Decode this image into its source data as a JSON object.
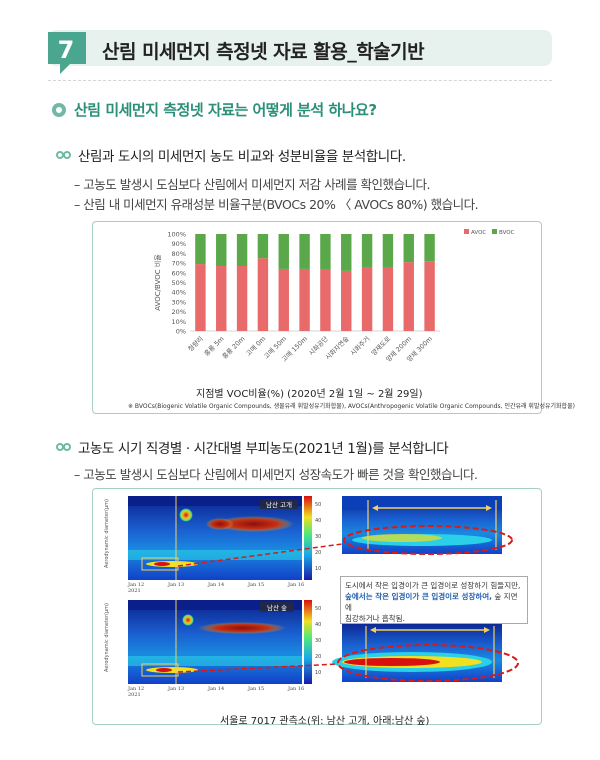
{
  "header": {
    "number": "7",
    "title": "산림 미세먼지 측정넷 자료 활용_학술기반"
  },
  "question": "산림 미세먼지 측정넷 자료는 어떻게 분석 하나요?",
  "section1": {
    "heading": "산림과 도시의 미세먼지 농도 비교와 성분비율을 분석합니다.",
    "bullets": [
      "– 고농도 발생시 도심보다 산림에서 미세먼지 저감 사례를 확인했습니다.",
      "– 산림 내 미세먼지 유래성분 비율구분(BVOCs 20% 〈 AVOCs 80%) 했습니다."
    ]
  },
  "chart_data": {
    "type": "bar",
    "stacked": true,
    "ylabel": "AVOC/BVOC 비율",
    "ylim": [
      0,
      100
    ],
    "yticks": [
      "0%",
      "10%",
      "20%",
      "30%",
      "40%",
      "50%",
      "60%",
      "70%",
      "80%",
      "90%",
      "100%"
    ],
    "categories": [
      "청량리",
      "홍릉 5m",
      "홍릉 20m",
      "고매 0m",
      "고매 50m",
      "고매 150m",
      "시화공단",
      "시화자연숲",
      "시화주거",
      "양재도로",
      "양재 200m",
      "양재 300m"
    ],
    "series": [
      {
        "name": "AVOC",
        "color": "#e86a6a",
        "values": [
          69,
          67,
          67,
          75,
          64,
          64,
          63,
          62,
          66,
          66,
          71,
          72
        ]
      },
      {
        "name": "BVOC",
        "color": "#5aa84a",
        "values": [
          31,
          33,
          33,
          25,
          36,
          36,
          37,
          38,
          34,
          34,
          29,
          28
        ]
      }
    ],
    "legend": "top-right",
    "caption": "지점별 VOC비율(%) (2020년 2월 1일 ~ 2월 29일)",
    "note": "※ BVOCs(Biogenic Volatile Organic Compounds, 생물유래 휘발성유기화합물), AVOCs(Anthropogenic Volatile Organic Compounds, 인간유래 휘발성유기화합물)"
  },
  "section2": {
    "heading": "고농도 시기 직경별 · 시간대별 부피농도(2021년 1월)를 분석합니다",
    "bullets": [
      "– 고농도 발생시 도심보다 산림에서 미세먼지 성장속도가 빠른 것을 확인했습니다."
    ]
  },
  "figure2": {
    "panels": [
      {
        "label": "남산 고개",
        "ylabel": "Aerodynamic diameter(μm)"
      },
      {
        "label": "남산 숲",
        "ylabel": "Aerodynamic diameter(μm)"
      }
    ],
    "dates": [
      "Jan 12\n2021",
      "Jan 13",
      "Jan 14",
      "Jan 15",
      "Jan 16"
    ],
    "colorbar": [
      "50",
      "40",
      "30",
      "20",
      "10"
    ],
    "callout": {
      "line1": "도시에서 작은 입경이가 큰 입경이로 성장하기 힘들지만,",
      "line2_blue": "숲에서는 작은 입경이가 큰 입경이로 성장하여,",
      "line2_rest": " 숲 지면에",
      "line3": "침강하거나 흡착됨."
    },
    "caption": "서울로 7017 관측소(위: 남산 고개, 아래:남산 숲)"
  }
}
